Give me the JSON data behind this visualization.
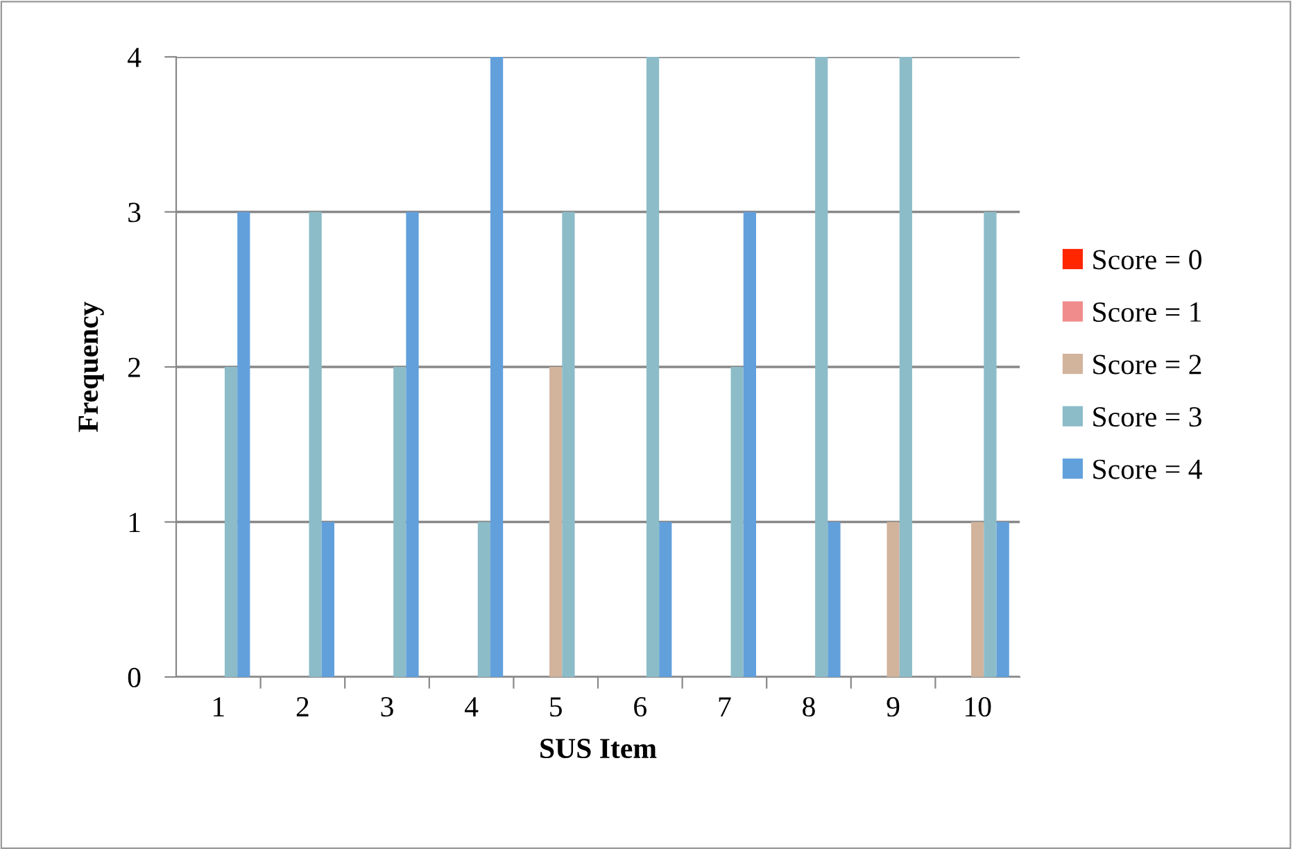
{
  "chart_data": {
    "type": "bar",
    "xlabel": "SUS Item",
    "ylabel": "Frequency",
    "categories": [
      "1",
      "2",
      "3",
      "4",
      "5",
      "6",
      "7",
      "8",
      "9",
      "10"
    ],
    "series": [
      {
        "name": "Score = 0",
        "color": "#ff2600",
        "values": [
          0,
          0,
          0,
          0,
          0,
          0,
          0,
          0,
          0,
          0
        ]
      },
      {
        "name": "Score = 1",
        "color": "#f08c8c",
        "values": [
          0,
          0,
          0,
          0,
          0,
          0,
          0,
          0,
          0,
          0
        ]
      },
      {
        "name": "Score = 2",
        "color": "#d2b39c",
        "values": [
          0,
          0,
          0,
          0,
          2,
          0,
          0,
          0,
          1,
          1
        ]
      },
      {
        "name": "Score = 3",
        "color": "#8cbcc8",
        "values": [
          2,
          3,
          2,
          1,
          3,
          4,
          2,
          4,
          4,
          3
        ]
      },
      {
        "name": "Score = 4",
        "color": "#62a0dc",
        "values": [
          3,
          1,
          3,
          4,
          0,
          1,
          3,
          1,
          0,
          1
        ]
      }
    ],
    "ylim": [
      0,
      4
    ],
    "yticks": [
      0,
      1,
      2,
      3,
      4
    ],
    "grid": "y",
    "legend": "right"
  }
}
